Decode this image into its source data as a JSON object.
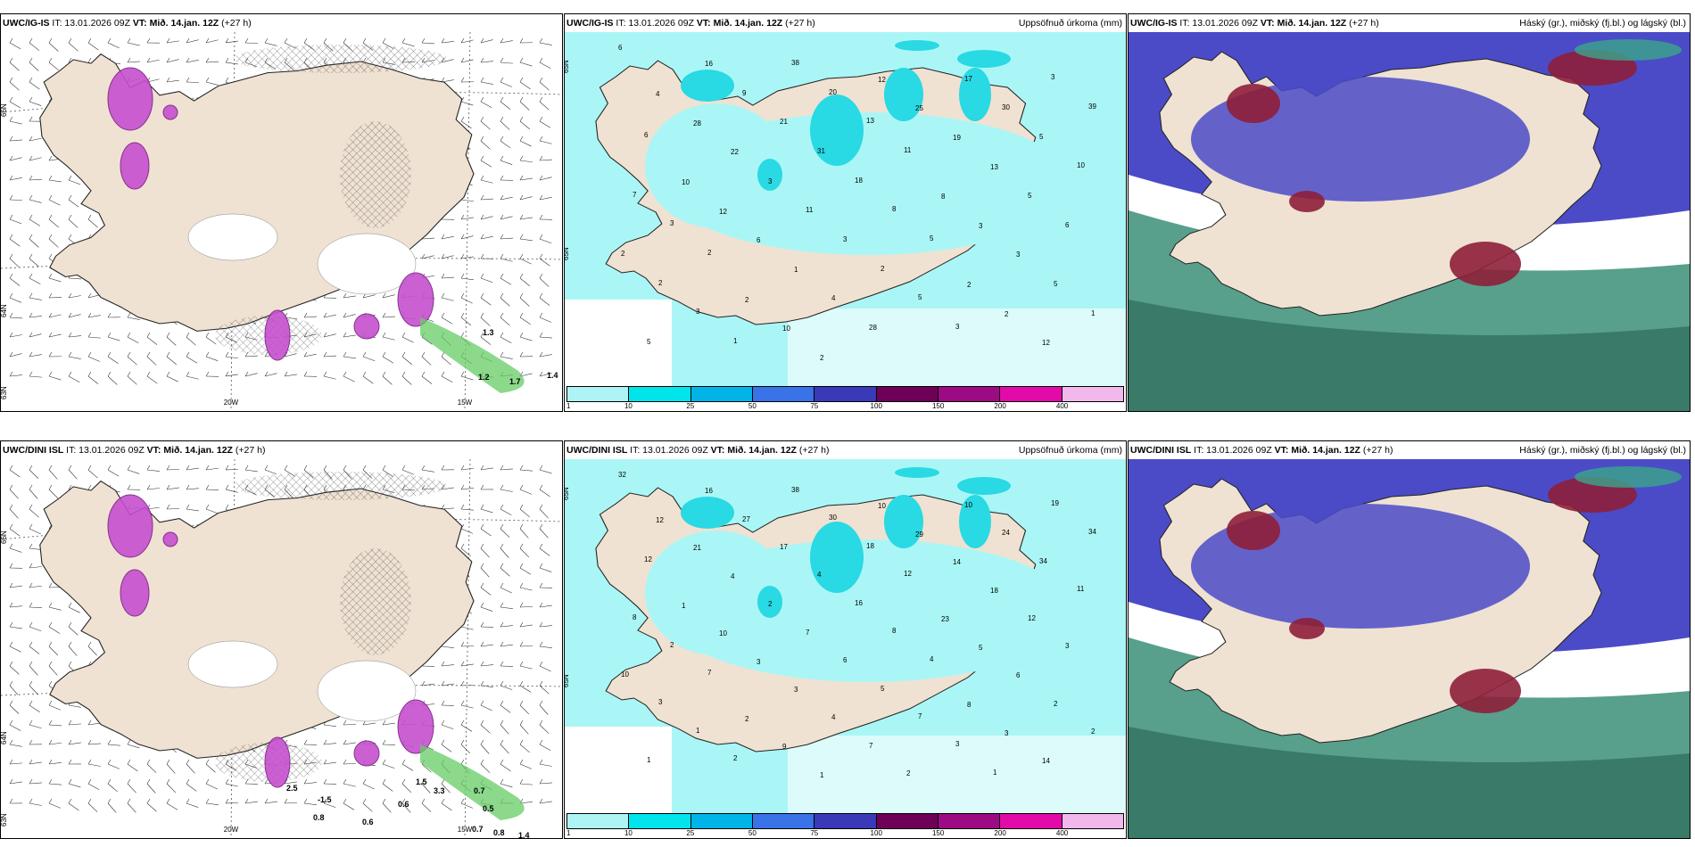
{
  "rows": [
    {
      "model": "UWC/IG-IS",
      "panels": {
        "wind": {
          "model": "UWC/IG-IS",
          "it": "IT: 13.01.2026 09Z",
          "vt_label": "VT: Mið. 14.jan. 12Z",
          "lead": "(+27 h)",
          "right": "",
          "lat_labels": [
            "66N",
            "64N",
            "63N"
          ],
          "lon_labels": [
            "20W",
            "15W"
          ],
          "values": [
            "1.3",
            "1.2",
            "1.7",
            "1.4"
          ]
        },
        "precip": {
          "model": "UWC/IG-IS",
          "it": "IT: 13.01.2026 09Z",
          "vt_label": "VT: Mið. 14.jan. 12Z",
          "lead": "(+27 h)",
          "right": "Uppsöfnuð úrkoma (mm)",
          "lat_labels": [
            "65N",
            "65N"
          ],
          "values": [
            "6",
            "16",
            "38",
            "12",
            "17",
            "3",
            "4",
            "9",
            "20",
            "25",
            "30",
            "39",
            "28",
            "21",
            "13",
            "19",
            "5",
            "6",
            "22",
            "31",
            "11",
            "13",
            "10",
            "10",
            "3",
            "18",
            "8",
            "5",
            "7",
            "12",
            "11",
            "8",
            "3",
            "6",
            "3",
            "6",
            "3",
            "5",
            "3",
            "2",
            "2",
            "1",
            "2",
            "2",
            "5",
            "2",
            "2",
            "4",
            "5",
            "2",
            "1",
            "3",
            "10",
            "28",
            "3",
            "12",
            "5",
            "1",
            "2"
          ]
        },
        "clouds": {
          "model": "UWC/IG-IS",
          "it": "IT: 13.01.2026 09Z",
          "vt_label": "VT: Mið. 14.jan. 12Z",
          "lead": "(+27 h)",
          "right": "Háský (gr.), miðský (fj.bl.) og lágský (bl.)"
        }
      }
    },
    {
      "model": "UWC/DINI ISL",
      "panels": {
        "wind": {
          "model": "UWC/DINI ISL",
          "it": "IT: 13.01.2026 09Z",
          "vt_label": "VT: Mið. 14.jan. 12Z",
          "lead": "(+27 h)",
          "right": "",
          "lat_labels": [
            "66N",
            "64N",
            "63N"
          ],
          "lon_labels": [
            "20W",
            "15W"
          ],
          "values": [
            "-1.5",
            "0.8",
            "0.6",
            "0.6",
            "0.7",
            "0.5",
            "0.7",
            "0.8",
            "1.4",
            "3.3",
            "1.5",
            "2.5"
          ]
        },
        "precip": {
          "model": "UWC/DINI ISL",
          "it": "IT: 13.01.2026 09Z",
          "vt_label": "VT: Mið. 14.jan. 12Z",
          "lead": "(+27 h)",
          "right": "Uppsöfnuð úrkoma (mm)",
          "lat_labels": [
            "65N",
            "65N"
          ],
          "values": [
            "32",
            "16",
            "38",
            "10",
            "10",
            "19",
            "12",
            "27",
            "30",
            "29",
            "24",
            "34",
            "21",
            "17",
            "18",
            "14",
            "34",
            "12",
            "4",
            "4",
            "12",
            "18",
            "11",
            "1",
            "2",
            "16",
            "23",
            "12",
            "8",
            "10",
            "7",
            "8",
            "5",
            "3",
            "2",
            "3",
            "6",
            "4",
            "6",
            "10",
            "7",
            "3",
            "5",
            "8",
            "2",
            "3",
            "2",
            "4",
            "7",
            "3",
            "2",
            "1",
            "9",
            "7",
            "3",
            "14",
            "1",
            "2",
            "1",
            "2",
            "1"
          ]
        },
        "clouds": {
          "model": "UWC/DINI ISL",
          "it": "IT: 13.01.2026 09Z",
          "vt_label": "VT: Mið. 14.jan. 12Z",
          "lead": "(+27 h)",
          "right": "Háský (gr.), miðský (fj.bl.) og lágský (bl.)"
        }
      }
    }
  ],
  "colorbar": {
    "ticks": [
      "1",
      "10",
      "25",
      "50",
      "75",
      "100",
      "150",
      "200",
      "400"
    ],
    "colors": [
      "#aef4f4",
      "#00e5ec",
      "#00b4e8",
      "#3a72e8",
      "#3a3ab8",
      "#6e0058",
      "#9c0a84",
      "#e20aa8",
      "#f2b8ec"
    ]
  },
  "colors": {
    "land": "#efe2d2",
    "precip_light": "#aaf6f6",
    "precip_mid": "#29d9e3",
    "cloud_high": "#3b8f77",
    "cloud_mid": "#4a4ac4",
    "cloud_low": "#8e1f3a",
    "snow": "#c64fcf",
    "freezing": "#66cc66"
  }
}
